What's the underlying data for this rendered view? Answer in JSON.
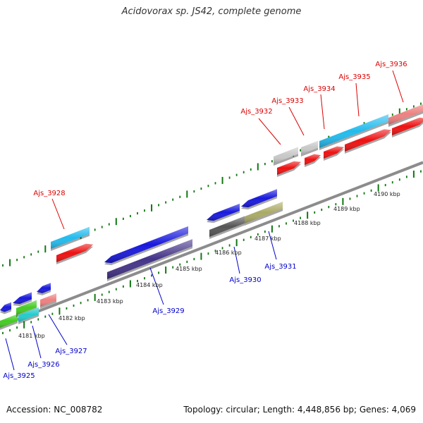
{
  "title": "Acidovorax sp. JS42, complete genome",
  "footer": {
    "accession": "Accession: NC_008782",
    "summary": "Topology: circular; Length: 4,448,856 bp; Genes: 4,069"
  },
  "colors": {
    "forward_label": "#dd0000",
    "reverse_label": "#0000cc",
    "backbone": "#8c8c8c",
    "tick": "#117711"
  },
  "kbp_labels": [
    "4181 kbp",
    "4182 kbp",
    "4183 kbp",
    "4184 kbp",
    "4185 kbp",
    "4186 kbp",
    "4187 kbp",
    "4188 kbp",
    "4189 kbp",
    "4190 kbp"
  ],
  "forward_genes": [
    {
      "label": "Ajs_3928",
      "color": "#22bbee"
    },
    {
      "label": "Ajs_3932",
      "color": "#c8c8c8"
    },
    {
      "label": "Ajs_3933",
      "color": "#c8c8c8"
    },
    {
      "label": "Ajs_3934",
      "color": "#22bbee"
    },
    {
      "label": "Ajs_3935",
      "color": "#22bbee"
    },
    {
      "label": "Ajs_3936",
      "color": "#ee8080"
    }
  ],
  "reverse_genes": [
    {
      "label": "Ajs_3925",
      "color": "#44cc22"
    },
    {
      "label": "Ajs_3926",
      "color": "#22cccc"
    },
    {
      "label": "Ajs_3927",
      "color": "#ee8080"
    },
    {
      "label": "Ajs_3929",
      "color": "#443388"
    },
    {
      "label": "Ajs_3930",
      "color": "#555555"
    },
    {
      "label": "Ajs_3931",
      "color": "#aaaa66"
    }
  ]
}
